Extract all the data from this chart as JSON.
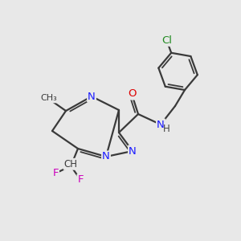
{
  "bg_color": "#e8e8e8",
  "bond_color": "#3a3a3a",
  "atom_colors": {
    "N": "#1a1aff",
    "O": "#dd0000",
    "F": "#cc00bb",
    "Cl": "#228B22",
    "C": "#3a3a3a",
    "H": "#444444",
    "NH": "#1a1aff"
  },
  "figsize": [
    3.0,
    3.0
  ],
  "dpi": 100
}
